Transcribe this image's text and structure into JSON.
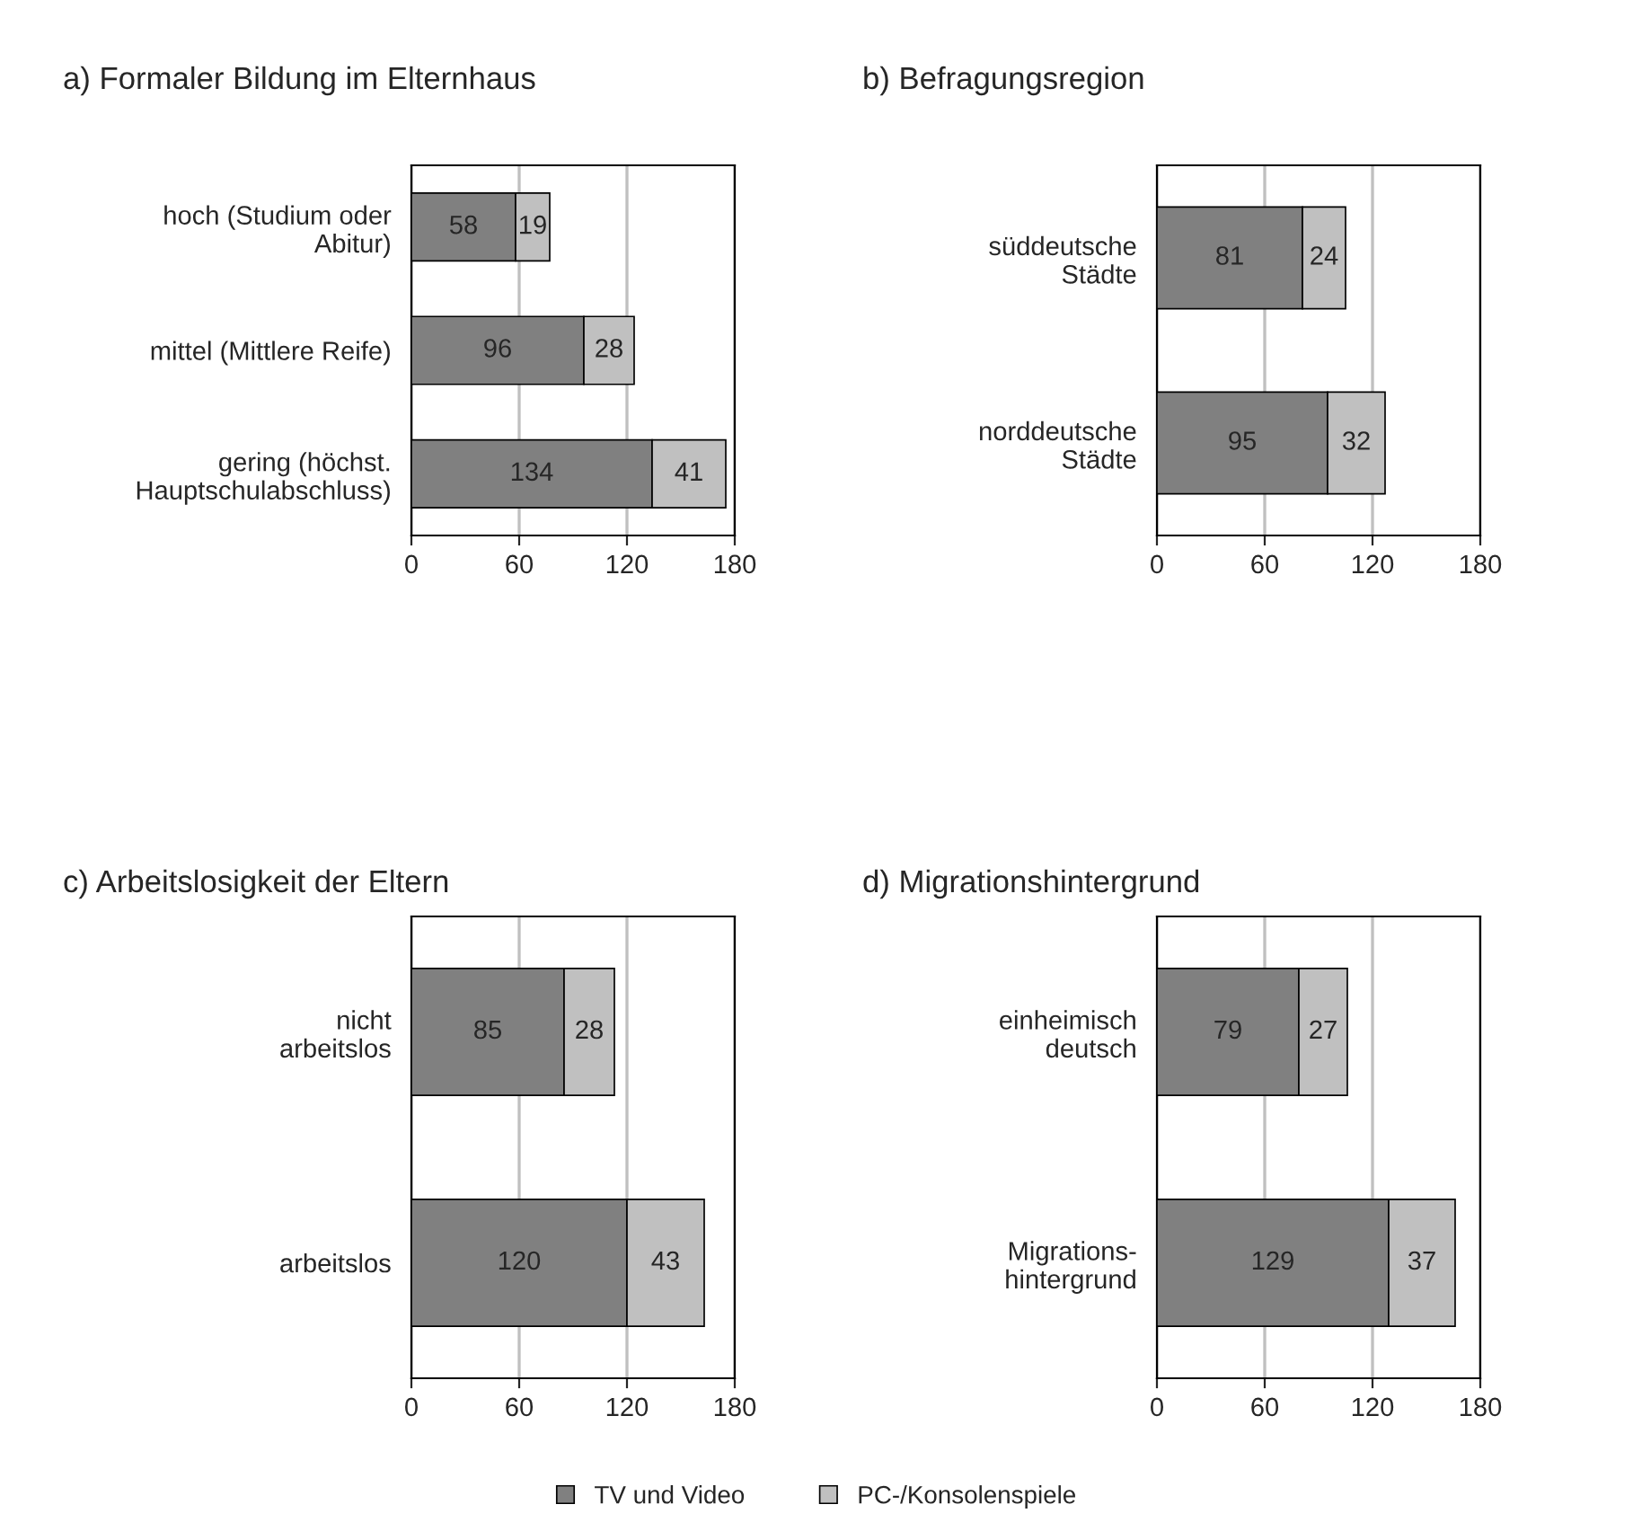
{
  "chart_data": [
    {
      "type": "bar",
      "orientation": "horizontal",
      "stacked": true,
      "title": "a) Formaler Bildung im Elternhaus",
      "categories": [
        "hoch (Studium oder\nAbitur)",
        "mittel (Mittlere Reife)",
        "gering (höchst.\nHauptschulabschluss)"
      ],
      "series": [
        {
          "color": "#808080",
          "values": [
            58,
            96,
            134
          ]
        },
        {
          "color": "#c0c0c0",
          "values": [
            19,
            28,
            41
          ]
        }
      ],
      "xlim": [
        0,
        180
      ],
      "xticks": [
        0,
        60,
        120,
        180
      ],
      "grid": "x",
      "data_labels": true
    },
    {
      "type": "bar",
      "orientation": "horizontal",
      "stacked": true,
      "title": "b) Befragungsregion",
      "categories": [
        "süddeutsche\nStädte",
        "norddeutsche\nStädte"
      ],
      "series": [
        {
          "color": "#808080",
          "values": [
            81,
            95
          ]
        },
        {
          "color": "#c0c0c0",
          "values": [
            24,
            32
          ]
        }
      ],
      "xlim": [
        0,
        180
      ],
      "xticks": [
        0,
        60,
        120,
        180
      ],
      "grid": "x",
      "data_labels": true
    },
    {
      "type": "bar",
      "orientation": "horizontal",
      "stacked": true,
      "title": "c) Arbeitslosigkeit der Eltern",
      "categories": [
        "nicht\narbeitslos",
        "arbeitslos"
      ],
      "series": [
        {
          "color": "#808080",
          "values": [
            85,
            120
          ]
        },
        {
          "color": "#c0c0c0",
          "values": [
            28,
            43
          ]
        }
      ],
      "xlim": [
        0,
        180
      ],
      "xticks": [
        0,
        60,
        120,
        180
      ],
      "grid": "x",
      "data_labels": true
    },
    {
      "type": "bar",
      "orientation": "horizontal",
      "stacked": true,
      "title": "d) Migrationshintergrund",
      "categories": [
        "einheimisch\ndeutsch",
        "Migrations-\nhintergrund"
      ],
      "series": [
        {
          "name": "TV und Video",
          "color": "#808080",
          "values": [
            79,
            129
          ]
        },
        {
          "name": "PC-/Konsolenspiele",
          "color": "#c0c0c0",
          "values": [
            27,
            37
          ]
        }
      ],
      "xlim": [
        0,
        180
      ],
      "xticks": [
        0,
        60,
        120,
        180
      ],
      "grid": "x",
      "data_labels": true,
      "legend": "bottom"
    }
  ]
}
